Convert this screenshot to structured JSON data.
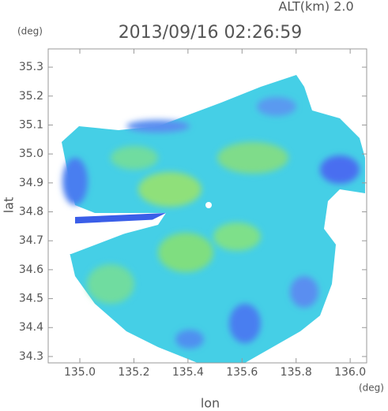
{
  "chart_data": {
    "type": "radar-map",
    "title": "2013/09/16 02:26:59",
    "subtitle": "ALT(km) 2.0",
    "y_unit": "(deg)",
    "x_unit": "(deg)",
    "x_label": "lon",
    "y_label": "lat",
    "xlim": [
      134.883,
      136.061
    ],
    "ylim": [
      34.278,
      35.363
    ],
    "xticks": [
      {
        "value": 135.0,
        "label": "135.0"
      },
      135.2,
      135.4,
      135.6,
      135.8,
      {
        "value": 136.0,
        "label": "136.0"
      }
    ],
    "yticks": [
      34.3,
      34.4,
      34.5,
      34.6,
      34.7,
      34.8,
      34.9,
      {
        "value": 35.0,
        "label": "35.0"
      },
      35.1,
      35.2,
      35.3
    ]
  }
}
